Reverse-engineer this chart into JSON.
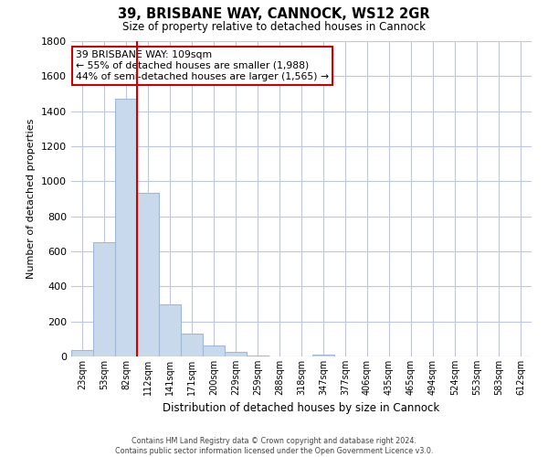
{
  "title": "39, BRISBANE WAY, CANNOCK, WS12 2GR",
  "subtitle": "Size of property relative to detached houses in Cannock",
  "xlabel": "Distribution of detached houses by size in Cannock",
  "ylabel": "Number of detached properties",
  "categories": [
    "23sqm",
    "53sqm",
    "82sqm",
    "112sqm",
    "141sqm",
    "171sqm",
    "200sqm",
    "229sqm",
    "259sqm",
    "288sqm",
    "318sqm",
    "347sqm",
    "377sqm",
    "406sqm",
    "435sqm",
    "465sqm",
    "494sqm",
    "524sqm",
    "553sqm",
    "583sqm",
    "612sqm"
  ],
  "values": [
    35,
    650,
    1470,
    935,
    295,
    130,
    65,
    25,
    5,
    0,
    0,
    10,
    0,
    0,
    0,
    0,
    0,
    0,
    0,
    0,
    0
  ],
  "bar_color": "#c9d9ec",
  "bar_edge_color": "#a0b8d8",
  "vline_x": 2.5,
  "vline_color": "#cc0000",
  "ylim": [
    0,
    1800
  ],
  "yticks": [
    0,
    200,
    400,
    600,
    800,
    1000,
    1200,
    1400,
    1600,
    1800
  ],
  "annotation_title": "39 BRISBANE WAY: 109sqm",
  "annotation_line1": "← 55% of detached houses are smaller (1,988)",
  "annotation_line2": "44% of semi-detached houses are larger (1,565) →",
  "footer_line1": "Contains HM Land Registry data © Crown copyright and database right 2024.",
  "footer_line2": "Contains public sector information licensed under the Open Government Licence v3.0.",
  "background_color": "#ffffff",
  "grid_color": "#c0c8d8"
}
